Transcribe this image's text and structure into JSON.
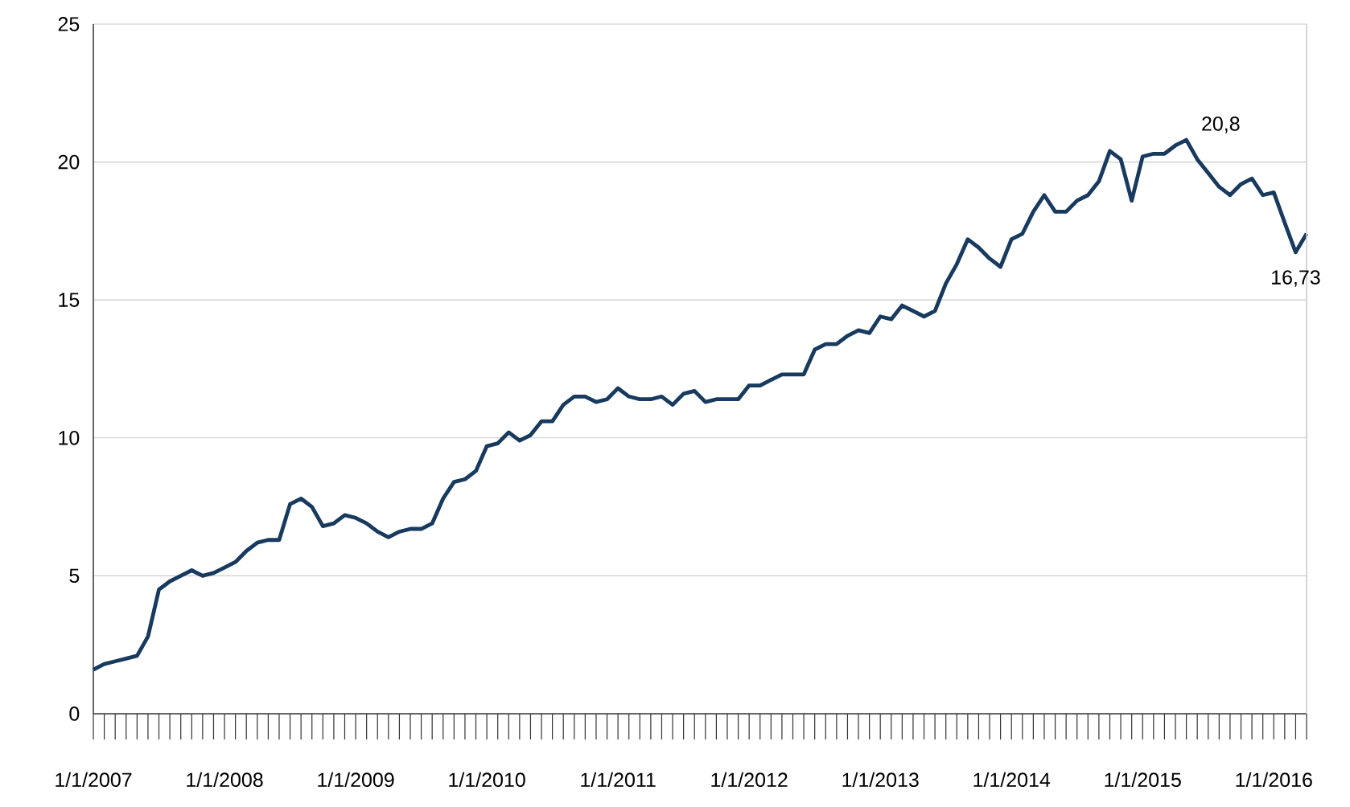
{
  "chart_data": {
    "type": "line",
    "x": [
      "2007-01",
      "2007-02",
      "2007-03",
      "2007-04",
      "2007-05",
      "2007-06",
      "2007-07",
      "2007-08",
      "2007-09",
      "2007-10",
      "2007-11",
      "2007-12",
      "2008-01",
      "2008-02",
      "2008-03",
      "2008-04",
      "2008-05",
      "2008-06",
      "2008-07",
      "2008-08",
      "2008-09",
      "2008-10",
      "2008-11",
      "2008-12",
      "2009-01",
      "2009-02",
      "2009-03",
      "2009-04",
      "2009-05",
      "2009-06",
      "2009-07",
      "2009-08",
      "2009-09",
      "2009-10",
      "2009-11",
      "2009-12",
      "2010-01",
      "2010-02",
      "2010-03",
      "2010-04",
      "2010-05",
      "2010-06",
      "2010-07",
      "2010-08",
      "2010-09",
      "2010-10",
      "2010-11",
      "2010-12",
      "2011-01",
      "2011-02",
      "2011-03",
      "2011-04",
      "2011-05",
      "2011-06",
      "2011-07",
      "2011-08",
      "2011-09",
      "2011-10",
      "2011-11",
      "2011-12",
      "2012-01",
      "2012-02",
      "2012-03",
      "2012-04",
      "2012-05",
      "2012-06",
      "2012-07",
      "2012-08",
      "2012-09",
      "2012-10",
      "2012-11",
      "2012-12",
      "2013-01",
      "2013-02",
      "2013-03",
      "2013-04",
      "2013-05",
      "2013-06",
      "2013-07",
      "2013-08",
      "2013-09",
      "2013-10",
      "2013-11",
      "2013-12",
      "2014-01",
      "2014-02",
      "2014-03",
      "2014-04",
      "2014-05",
      "2014-06",
      "2014-07",
      "2014-08",
      "2014-09",
      "2014-10",
      "2014-11",
      "2014-12",
      "2015-01",
      "2015-02",
      "2015-03",
      "2015-04",
      "2015-05",
      "2015-06",
      "2015-07",
      "2015-08",
      "2015-09",
      "2015-10",
      "2015-11",
      "2015-12",
      "2016-01",
      "2016-02",
      "2016-03",
      "2016-04"
    ],
    "series": [
      {
        "color": "#173a5e",
        "values": [
          1.6,
          1.8,
          1.9,
          2.0,
          2.1,
          2.8,
          4.5,
          4.8,
          5.0,
          5.2,
          5.0,
          5.1,
          5.3,
          5.5,
          5.9,
          6.2,
          6.3,
          6.3,
          7.6,
          7.8,
          7.5,
          6.8,
          6.9,
          7.2,
          7.1,
          6.9,
          6.6,
          6.4,
          6.6,
          6.7,
          6.7,
          6.9,
          7.8,
          8.4,
          8.5,
          8.8,
          9.7,
          9.8,
          10.2,
          9.9,
          10.1,
          10.6,
          10.6,
          11.2,
          11.5,
          11.5,
          11.3,
          11.4,
          11.8,
          11.5,
          11.4,
          11.4,
          11.5,
          11.2,
          11.6,
          11.7,
          11.3,
          11.4,
          11.4,
          11.4,
          11.9,
          11.9,
          12.1,
          12.3,
          12.3,
          12.3,
          13.2,
          13.4,
          13.4,
          13.7,
          13.9,
          13.8,
          14.4,
          14.3,
          14.8,
          14.6,
          14.4,
          14.6,
          15.6,
          16.3,
          17.2,
          16.9,
          16.5,
          16.2,
          17.2,
          17.4,
          18.2,
          18.8,
          18.2,
          18.2,
          18.6,
          18.8,
          19.3,
          20.4,
          20.1,
          18.6,
          20.2,
          20.3,
          20.3,
          20.6,
          20.8,
          20.1,
          19.6,
          19.1,
          18.8,
          19.2,
          19.4,
          18.8,
          18.9,
          17.8,
          16.73,
          17.4
        ]
      }
    ],
    "xlim": [
      "2007-01",
      "2016-04"
    ],
    "xticks": [
      {
        "value": "2007-01",
        "label": "1/1/2007"
      },
      {
        "value": "2007-02",
        "label": null
      },
      {
        "value": "2007-03",
        "label": null
      },
      {
        "value": "2007-04",
        "label": null
      },
      {
        "value": "2007-05",
        "label": null
      },
      {
        "value": "2007-06",
        "label": null
      },
      {
        "value": "2007-07",
        "label": null
      },
      {
        "value": "2007-08",
        "label": null
      },
      {
        "value": "2007-09",
        "label": null
      },
      {
        "value": "2007-10",
        "label": null
      },
      {
        "value": "2007-11",
        "label": null
      },
      {
        "value": "2007-12",
        "label": null
      },
      {
        "value": "2008-01",
        "label": "1/1/2008"
      },
      {
        "value": "2008-02",
        "label": null
      },
      {
        "value": "2008-03",
        "label": null
      },
      {
        "value": "2008-04",
        "label": null
      },
      {
        "value": "2008-05",
        "label": null
      },
      {
        "value": "2008-06",
        "label": null
      },
      {
        "value": "2008-07",
        "label": null
      },
      {
        "value": "2008-08",
        "label": null
      },
      {
        "value": "2008-09",
        "label": null
      },
      {
        "value": "2008-10",
        "label": null
      },
      {
        "value": "2008-11",
        "label": null
      },
      {
        "value": "2008-12",
        "label": null
      },
      {
        "value": "2009-01",
        "label": "1/1/2009"
      },
      {
        "value": "2009-02",
        "label": null
      },
      {
        "value": "2009-03",
        "label": null
      },
      {
        "value": "2009-04",
        "label": null
      },
      {
        "value": "2009-05",
        "label": null
      },
      {
        "value": "2009-06",
        "label": null
      },
      {
        "value": "2009-07",
        "label": null
      },
      {
        "value": "2009-08",
        "label": null
      },
      {
        "value": "2009-09",
        "label": null
      },
      {
        "value": "2009-10",
        "label": null
      },
      {
        "value": "2009-11",
        "label": null
      },
      {
        "value": "2009-12",
        "label": null
      },
      {
        "value": "2010-01",
        "label": "1/1/2010"
      },
      {
        "value": "2010-02",
        "label": null
      },
      {
        "value": "2010-03",
        "label": null
      },
      {
        "value": "2010-04",
        "label": null
      },
      {
        "value": "2010-05",
        "label": null
      },
      {
        "value": "2010-06",
        "label": null
      },
      {
        "value": "2010-07",
        "label": null
      },
      {
        "value": "2010-08",
        "label": null
      },
      {
        "value": "2010-09",
        "label": null
      },
      {
        "value": "2010-10",
        "label": null
      },
      {
        "value": "2010-11",
        "label": null
      },
      {
        "value": "2010-12",
        "label": null
      },
      {
        "value": "2011-01",
        "label": "1/1/2011"
      },
      {
        "value": "2011-02",
        "label": null
      },
      {
        "value": "2011-03",
        "label": null
      },
      {
        "value": "2011-04",
        "label": null
      },
      {
        "value": "2011-05",
        "label": null
      },
      {
        "value": "2011-06",
        "label": null
      },
      {
        "value": "2011-07",
        "label": null
      },
      {
        "value": "2011-08",
        "label": null
      },
      {
        "value": "2011-09",
        "label": null
      },
      {
        "value": "2011-10",
        "label": null
      },
      {
        "value": "2011-11",
        "label": null
      },
      {
        "value": "2011-12",
        "label": null
      },
      {
        "value": "2012-01",
        "label": "1/1/2012"
      },
      {
        "value": "2012-02",
        "label": null
      },
      {
        "value": "2012-03",
        "label": null
      },
      {
        "value": "2012-04",
        "label": null
      },
      {
        "value": "2012-05",
        "label": null
      },
      {
        "value": "2012-06",
        "label": null
      },
      {
        "value": "2012-07",
        "label": null
      },
      {
        "value": "2012-08",
        "label": null
      },
      {
        "value": "2012-09",
        "label": null
      },
      {
        "value": "2012-10",
        "label": null
      },
      {
        "value": "2012-11",
        "label": null
      },
      {
        "value": "2012-12",
        "label": null
      },
      {
        "value": "2013-01",
        "label": "1/1/2013"
      },
      {
        "value": "2013-02",
        "label": null
      },
      {
        "value": "2013-03",
        "label": null
      },
      {
        "value": "2013-04",
        "label": null
      },
      {
        "value": "2013-05",
        "label": null
      },
      {
        "value": "2013-06",
        "label": null
      },
      {
        "value": "2013-07",
        "label": null
      },
      {
        "value": "2013-08",
        "label": null
      },
      {
        "value": "2013-09",
        "label": null
      },
      {
        "value": "2013-10",
        "label": null
      },
      {
        "value": "2013-11",
        "label": null
      },
      {
        "value": "2013-12",
        "label": null
      },
      {
        "value": "2014-01",
        "label": "1/1/2014"
      },
      {
        "value": "2014-02",
        "label": null
      },
      {
        "value": "2014-03",
        "label": null
      },
      {
        "value": "2014-04",
        "label": null
      },
      {
        "value": "2014-05",
        "label": null
      },
      {
        "value": "2014-06",
        "label": null
      },
      {
        "value": "2014-07",
        "label": null
      },
      {
        "value": "2014-08",
        "label": null
      },
      {
        "value": "2014-09",
        "label": null
      },
      {
        "value": "2014-10",
        "label": null
      },
      {
        "value": "2014-11",
        "label": null
      },
      {
        "value": "2014-12",
        "label": null
      },
      {
        "value": "2015-01",
        "label": "1/1/2015"
      },
      {
        "value": "2015-02",
        "label": null
      },
      {
        "value": "2015-03",
        "label": null
      },
      {
        "value": "2015-04",
        "label": null
      },
      {
        "value": "2015-05",
        "label": null
      },
      {
        "value": "2015-06",
        "label": null
      },
      {
        "value": "2015-07",
        "label": null
      },
      {
        "value": "2015-08",
        "label": null
      },
      {
        "value": "2015-09",
        "label": null
      },
      {
        "value": "2015-10",
        "label": null
      },
      {
        "value": "2015-11",
        "label": null
      },
      {
        "value": "2015-12",
        "label": null
      },
      {
        "value": "2016-01",
        "label": "1/1/2016"
      },
      {
        "value": "2016-02",
        "label": null
      },
      {
        "value": "2016-03",
        "label": null
      },
      {
        "value": "2016-04",
        "label": null
      }
    ],
    "ylim": [
      0,
      25
    ],
    "yticks": [
      0,
      5,
      10,
      15,
      20,
      25
    ],
    "grid": "y",
    "annotations": [
      {
        "text": "20,8",
        "x": "2015-05",
        "y": 20.8
      },
      {
        "text": "16,73",
        "x": "2016-03",
        "y": 16.73
      }
    ]
  }
}
